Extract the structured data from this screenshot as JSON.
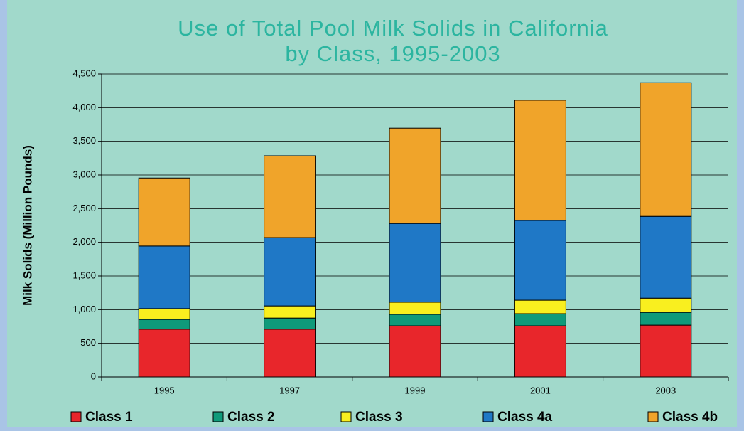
{
  "chart_data": {
    "type": "stacked_bar",
    "title": "Use of Total Pool Milk Solids in California",
    "subtitle": "by Class, 1995-2003",
    "y_label": "Milk Solids (Million Pounds)",
    "categories": [
      "1995",
      "1997",
      "1999",
      "2001",
      "2003"
    ],
    "series": [
      {
        "name": "Class 1",
        "color": "#e8262b",
        "values": [
          710,
          710,
          760,
          760,
          770
        ]
      },
      {
        "name": "Class 2",
        "color": "#0f9a7a",
        "values": [
          145,
          165,
          170,
          180,
          190
        ]
      },
      {
        "name": "Class 3",
        "color": "#f9ef1f",
        "values": [
          160,
          180,
          180,
          200,
          210
        ]
      },
      {
        "name": "Class 4a",
        "color": "#1f78c6",
        "values": [
          930,
          1015,
          1170,
          1185,
          1215
        ]
      },
      {
        "name": "Class 4b",
        "color": "#f0a42a",
        "values": [
          1010,
          1215,
          1415,
          1785,
          1985
        ]
      }
    ],
    "ylim": [
      0,
      4500
    ],
    "yticks": [
      0,
      500,
      {
        "value": 1000,
        "label": "1,000"
      },
      {
        "value": 1500,
        "label": "1,500"
      },
      {
        "value": 2000,
        "label": "2,000"
      },
      {
        "value": 2500,
        "label": "2,500"
      },
      {
        "value": 3000,
        "label": "3,000"
      },
      {
        "value": 3500,
        "label": "3,500"
      },
      {
        "value": 4000,
        "label": "4,000"
      },
      {
        "value": 4500,
        "label": "4,500"
      }
    ],
    "grid": true,
    "legend": "bottom"
  }
}
